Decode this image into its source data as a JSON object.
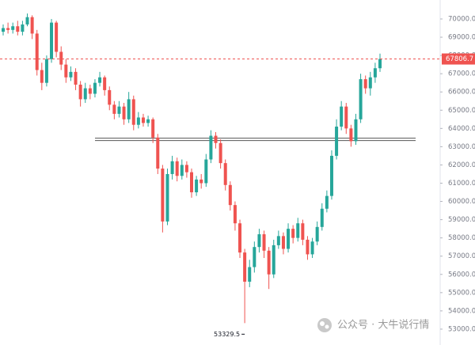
{
  "chart_data": {
    "type": "candlestick",
    "open": [
      69300,
      69500,
      69400,
      69600,
      69300,
      69700,
      70100,
      69200,
      67200,
      66500,
      67800,
      69800,
      68200,
      67500,
      66800,
      67100,
      66400,
      65600,
      66200,
      65900,
      66500,
      66800,
      66100,
      65300,
      64800,
      65200,
      64500,
      65600,
      64200,
      64600,
      64300,
      64500,
      63500,
      61800,
      58900,
      61500,
      62200,
      61400,
      62000,
      61600,
      60500,
      61200,
      61000,
      62300,
      63600,
      63200,
      62100,
      60900,
      59800,
      58800,
      57200,
      55600,
      56400,
      57500,
      58200,
      57300,
      56000,
      57600,
      58100,
      57400,
      58500,
      58000,
      58800,
      57900,
      57100,
      57800,
      58600,
      59600,
      60300,
      62500,
      64100,
      65200,
      64000,
      63300,
      64500,
      66700,
      66200,
      66800,
      67300
    ],
    "high": [
      69700,
      69800,
      69800,
      69900,
      69900,
      70300,
      70200,
      69400,
      67600,
      68000,
      70000,
      69900,
      68500,
      67800,
      67400,
      67300,
      66600,
      66500,
      66400,
      66700,
      67100,
      66900,
      66300,
      65500,
      65500,
      65400,
      66000,
      65800,
      64900,
      64800,
      64700,
      64600,
      63700,
      62000,
      61800,
      62500,
      62400,
      62300,
      62200,
      61800,
      61400,
      61500,
      62600,
      63900,
      63800,
      63400,
      62300,
      61100,
      60000,
      59000,
      57400,
      56800,
      57800,
      58500,
      58400,
      57500,
      57900,
      58400,
      58300,
      58800,
      58700,
      59100,
      59000,
      58100,
      58000,
      58900,
      59900,
      60600,
      62800,
      64500,
      65500,
      65400,
      64200,
      64800,
      67000,
      66900,
      67100,
      67600,
      68100
    ],
    "low": [
      69100,
      69200,
      69200,
      69100,
      69100,
      69600,
      68900,
      66900,
      66100,
      66300,
      67600,
      67900,
      67200,
      66500,
      66600,
      66100,
      65200,
      65400,
      65600,
      65700,
      66300,
      65800,
      65000,
      64500,
      64600,
      64200,
      64300,
      63900,
      64000,
      64100,
      64100,
      63200,
      61500,
      58300,
      58700,
      61200,
      61100,
      61200,
      61300,
      60200,
      60300,
      60700,
      60800,
      62100,
      62900,
      61800,
      60600,
      59500,
      58400,
      56900,
      53329.5,
      55300,
      56100,
      57200,
      56900,
      55200,
      55800,
      57400,
      57100,
      57200,
      57700,
      57800,
      57600,
      56800,
      56900,
      57600,
      58400,
      59400,
      60100,
      62300,
      63900,
      63700,
      63000,
      63100,
      64300,
      65900,
      65800,
      66500,
      67100
    ],
    "close": [
      69500,
      69400,
      69600,
      69300,
      69700,
      70100,
      69200,
      67200,
      66500,
      67800,
      69800,
      68200,
      67500,
      66800,
      67100,
      66400,
      65600,
      66200,
      65900,
      66500,
      66800,
      66100,
      65300,
      64800,
      65200,
      64500,
      65600,
      64200,
      64600,
      64300,
      64500,
      63500,
      61800,
      58900,
      61500,
      62200,
      61400,
      62000,
      61600,
      60500,
      61200,
      61000,
      62300,
      63600,
      63200,
      62100,
      60900,
      59800,
      58800,
      57200,
      55600,
      56400,
      57500,
      58200,
      57300,
      56000,
      57600,
      58100,
      57400,
      58500,
      58000,
      58800,
      57900,
      57100,
      57800,
      58600,
      59600,
      60300,
      62500,
      64100,
      65200,
      64000,
      63300,
      64500,
      66700,
      66200,
      66800,
      67300,
      67806.7
    ],
    "up_color": "#26a69a",
    "down_color": "#ef5350",
    "levels": [
      63400
    ],
    "ylim": [
      52130,
      71040
    ],
    "yticks": [
      {
        "value": 53000,
        "label": "53000.0"
      },
      {
        "value": 54000,
        "label": "54000.0"
      },
      {
        "value": 55000,
        "label": "55000.0"
      },
      {
        "value": 56000,
        "label": "56000.0"
      },
      {
        "value": 57000,
        "label": "57000.0"
      },
      {
        "value": 58000,
        "label": "58000.0"
      },
      {
        "value": 59000,
        "label": "59000.0"
      },
      {
        "value": 60000,
        "label": "60000.0"
      },
      {
        "value": 61000,
        "label": "61000.0"
      },
      {
        "value": 62000,
        "label": "62000.0"
      },
      {
        "value": 63000,
        "label": "63000.0"
      },
      {
        "value": 64000,
        "label": "64000.0"
      },
      {
        "value": 65000,
        "label": "65000.0"
      },
      {
        "value": 66000,
        "label": "66000.0"
      },
      {
        "value": 67000,
        "label": "67000.0"
      },
      {
        "value": 68000,
        "label": "68000.0"
      },
      {
        "value": 69000,
        "label": "69000.0"
      },
      {
        "value": 70000,
        "label": "70000.0"
      }
    ],
    "watermark": "公众号 · 大牛说行情"
  }
}
